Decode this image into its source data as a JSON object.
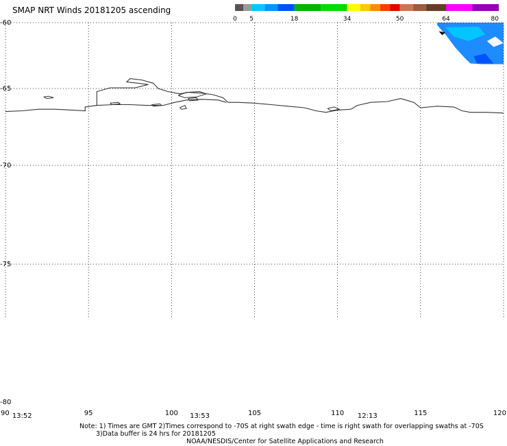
{
  "title": "SMAP NRT Winds 20181205 ascending",
  "colorbar": {
    "tick_labels": [
      "0",
      "5",
      "18",
      "34",
      "50",
      "64",
      "80"
    ],
    "ticks": [
      0,
      5,
      18,
      34,
      50,
      64,
      80
    ],
    "range": [
      0,
      80
    ],
    "segments": [
      {
        "from": 0,
        "to": 2.5,
        "color": "#555555"
      },
      {
        "from": 2.5,
        "to": 5,
        "color": "#9a9a9a"
      },
      {
        "from": 5,
        "to": 9,
        "color": "#00c8ff"
      },
      {
        "from": 9,
        "to": 13,
        "color": "#0096ff"
      },
      {
        "from": 13,
        "to": 18,
        "color": "#0050ff"
      },
      {
        "from": 18,
        "to": 26,
        "color": "#00b400"
      },
      {
        "from": 26,
        "to": 34,
        "color": "#00dc00"
      },
      {
        "from": 34,
        "to": 38,
        "color": "#ffff00"
      },
      {
        "from": 38,
        "to": 41,
        "color": "#ffc800"
      },
      {
        "from": 41,
        "to": 44,
        "color": "#ff8c00"
      },
      {
        "from": 44,
        "to": 47,
        "color": "#ff3c00"
      },
      {
        "from": 47,
        "to": 50,
        "color": "#e60000"
      },
      {
        "from": 50,
        "to": 54,
        "color": "#c87850"
      },
      {
        "from": 54,
        "to": 58,
        "color": "#a05a3c"
      },
      {
        "from": 58,
        "to": 64,
        "color": "#643c28"
      },
      {
        "from": 64,
        "to": 72,
        "color": "#ff00ff"
      },
      {
        "from": 72,
        "to": 80,
        "color": "#9600b4"
      }
    ]
  },
  "map": {
    "lon_range": [
      90,
      120
    ],
    "lat_range": [
      -60,
      -80
    ],
    "lon_ticks": [
      90,
      95,
      100,
      105,
      110,
      115,
      120
    ],
    "lon_labels": [
      "90",
      "95",
      "100",
      "105",
      "110",
      "115",
      "120"
    ],
    "lat_ticks": [
      -60,
      -65,
      -70,
      -75,
      -80
    ],
    "lat_labels": [
      "-60",
      "-65",
      "-70",
      "-75",
      "-80"
    ],
    "grid": true,
    "time_labels": [
      {
        "lon": 91.0,
        "text": "13:52"
      },
      {
        "lon": 101.7,
        "text": "13:53"
      },
      {
        "lon": 111.8,
        "text": "12:13"
      }
    ],
    "coastline": [
      [
        90.0,
        -66.5
      ],
      [
        91.0,
        -66.45
      ],
      [
        92.0,
        -66.35
      ],
      [
        93.0,
        -66.35
      ],
      [
        94.0,
        -66.4
      ],
      [
        94.8,
        -66.45
      ],
      [
        94.8,
        -66.2
      ],
      [
        95.5,
        -66.1
      ],
      [
        95.5,
        -65.2
      ],
      [
        96.3,
        -64.95
      ],
      [
        97.2,
        -64.95
      ],
      [
        97.8,
        -64.95
      ],
      [
        98.6,
        -64.7
      ],
      [
        98.0,
        -64.6
      ],
      [
        97.3,
        -64.5
      ],
      [
        97.5,
        -64.25
      ],
      [
        98.2,
        -64.35
      ],
      [
        98.9,
        -64.6
      ],
      [
        99.2,
        -65.0
      ],
      [
        99.8,
        -65.2
      ],
      [
        100.5,
        -65.35
      ],
      [
        101.0,
        -65.25
      ],
      [
        101.8,
        -65.3
      ],
      [
        102.5,
        -65.4
      ],
      [
        103.1,
        -65.6
      ],
      [
        103.4,
        -65.9
      ],
      [
        104.0,
        -65.9
      ],
      [
        105.0,
        -65.95
      ],
      [
        106.0,
        -66.05
      ],
      [
        107.0,
        -66.15
      ],
      [
        108.0,
        -66.25
      ],
      [
        108.7,
        -66.45
      ],
      [
        109.3,
        -66.55
      ],
      [
        110.0,
        -66.4
      ],
      [
        110.8,
        -66.35
      ],
      [
        111.2,
        -66.1
      ],
      [
        112.0,
        -65.9
      ],
      [
        113.0,
        -65.85
      ],
      [
        113.8,
        -65.65
      ],
      [
        114.6,
        -65.9
      ],
      [
        115.0,
        -66.25
      ],
      [
        116.0,
        -66.15
      ],
      [
        117.0,
        -66.2
      ],
      [
        117.5,
        -66.45
      ],
      [
        118.0,
        -66.55
      ],
      [
        119.0,
        -66.55
      ],
      [
        120.0,
        -66.6
      ]
    ],
    "inner_shelf": [
      [
        95.5,
        -66.1
      ],
      [
        96.5,
        -66.05
      ],
      [
        97.5,
        -66.05
      ],
      [
        98.5,
        -66.1
      ],
      [
        99.5,
        -66.1
      ],
      [
        100.2,
        -65.9
      ],
      [
        100.9,
        -65.75
      ],
      [
        101.8,
        -65.7
      ],
      [
        102.8,
        -65.75
      ],
      [
        103.3,
        -65.9
      ]
    ],
    "islands": [
      [
        [
          92.3,
          -65.55
        ],
        [
          92.6,
          -65.5
        ],
        [
          92.9,
          -65.6
        ],
        [
          92.5,
          -65.65
        ],
        [
          92.3,
          -65.55
        ]
      ],
      [
        [
          96.3,
          -65.95
        ],
        [
          96.8,
          -65.9
        ],
        [
          96.9,
          -66.0
        ],
        [
          96.4,
          -66.05
        ],
        [
          96.3,
          -65.95
        ]
      ],
      [
        [
          98.8,
          -66.05
        ],
        [
          99.3,
          -66.0
        ],
        [
          99.4,
          -66.1
        ],
        [
          98.9,
          -66.15
        ],
        [
          98.8,
          -66.05
        ]
      ],
      [
        [
          100.5,
          -66.25
        ],
        [
          100.8,
          -66.1
        ],
        [
          100.9,
          -66.3
        ],
        [
          100.6,
          -66.35
        ],
        [
          100.5,
          -66.25
        ]
      ],
      [
        [
          100.4,
          -65.45
        ],
        [
          100.9,
          -65.25
        ],
        [
          101.7,
          -65.2
        ],
        [
          102.1,
          -65.35
        ],
        [
          101.5,
          -65.55
        ],
        [
          100.8,
          -65.6
        ],
        [
          100.4,
          -65.45
        ]
      ],
      [
        [
          101.0,
          -65.65
        ],
        [
          101.5,
          -65.6
        ],
        [
          101.6,
          -65.75
        ],
        [
          101.1,
          -65.8
        ],
        [
          101.0,
          -65.65
        ]
      ],
      [
        [
          109.4,
          -66.3
        ],
        [
          109.8,
          -66.2
        ],
        [
          110.1,
          -66.35
        ],
        [
          109.6,
          -66.45
        ],
        [
          109.4,
          -66.3
        ]
      ]
    ],
    "swath": {
      "outline": [
        [
          116.0,
          -60.0
        ],
        [
          120.0,
          -60.0
        ],
        [
          120.0,
          -63.15
        ],
        [
          119.4,
          -63.15
        ],
        [
          118.7,
          -63.15
        ],
        [
          118.0,
          -63.1
        ],
        [
          117.6,
          -62.6
        ],
        [
          117.1,
          -61.9
        ],
        [
          116.5,
          -60.9
        ],
        [
          116.0,
          -60.2
        ]
      ],
      "fill_color": "#1e8cff",
      "patches": [
        {
          "color": "#00c8ff",
          "points": [
            [
              116.5,
              -60.35
            ],
            [
              118.5,
              -60.3
            ],
            [
              118.9,
              -60.9
            ],
            [
              117.9,
              -61.4
            ],
            [
              117.0,
              -61.05
            ]
          ]
        },
        {
          "color": "#0050ff",
          "points": [
            [
              118.2,
              -62.55
            ],
            [
              118.9,
              -62.35
            ],
            [
              119.4,
              -63.1
            ],
            [
              118.4,
              -63.1
            ]
          ]
        },
        {
          "color": "#ffffff",
          "points": [
            [
              119.0,
              -61.4
            ],
            [
              119.5,
              -61.05
            ],
            [
              120.0,
              -61.55
            ],
            [
              119.4,
              -61.85
            ]
          ]
        },
        {
          "color": "#000000",
          "points": [
            [
              116.1,
              -60.65
            ],
            [
              116.5,
              -60.75
            ],
            [
              116.3,
              -60.95
            ]
          ]
        }
      ]
    }
  },
  "notes": [
    "Note: 1) Times are GMT 2)Times correspond to -70S at right swath edge - time is right swath for overlapping swaths at -70S",
    "3)Data buffer is 24 hrs for 20181205",
    "NOAA/NESDIS/Center for Satellite Applications and Research"
  ]
}
